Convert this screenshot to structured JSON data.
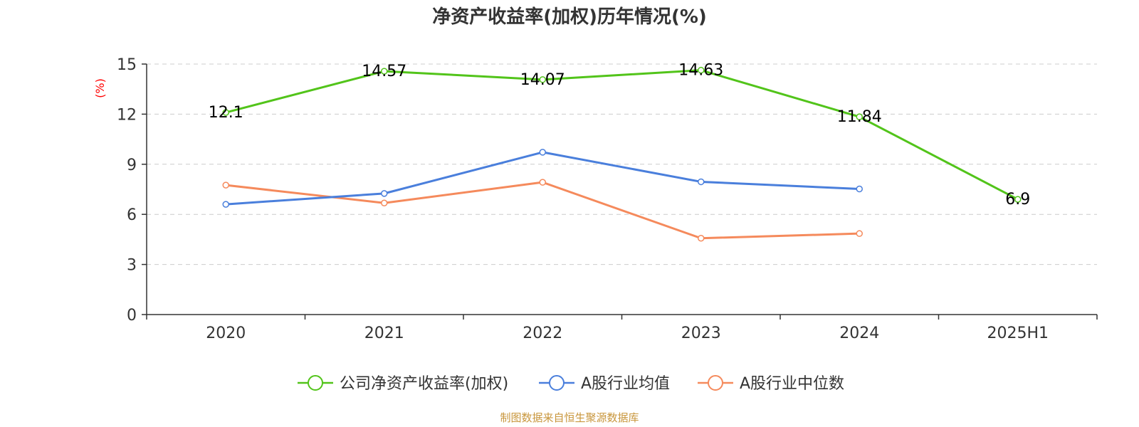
{
  "chart_data": {
    "type": "line",
    "title": "净资产收益率(加权)历年情况(%)",
    "ylabel": "(%)",
    "xlabel": "",
    "categories": [
      "2020",
      "2021",
      "2022",
      "2023",
      "2024",
      "2025H1"
    ],
    "yticks": [
      "0",
      "3",
      "6",
      "9",
      "12",
      "15"
    ],
    "ylim": [
      0,
      15
    ],
    "grid": true,
    "legend_position": "bottom",
    "series": [
      {
        "name": "公司净资产收益率(加权)",
        "color": "#52c41a",
        "values": [
          12.1,
          14.57,
          14.07,
          14.63,
          11.84,
          6.9
        ],
        "labels": [
          "12.1",
          "14.57",
          "14.07",
          "14.63",
          "11.84",
          "6.9"
        ]
      },
      {
        "name": "A股行业均值",
        "color": "#4a7fdc",
        "values": [
          6.6,
          7.25,
          9.72,
          7.95,
          7.52,
          null
        ]
      },
      {
        "name": "A股行业中位数",
        "color": "#f58a5c",
        "values": [
          7.75,
          6.68,
          7.92,
          4.57,
          4.85,
          null
        ]
      }
    ]
  },
  "source_note": "制图数据来自恒生聚源数据库"
}
